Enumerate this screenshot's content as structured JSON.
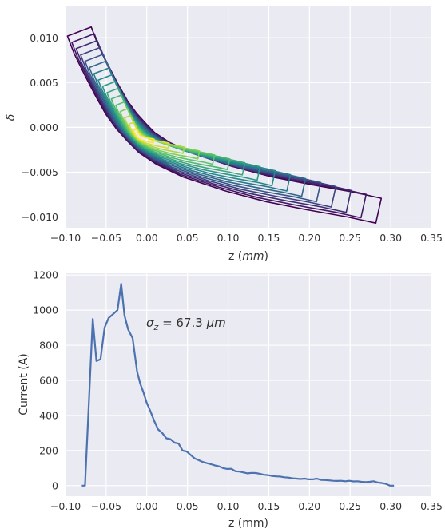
{
  "chart_data": [
    {
      "type": "contour",
      "title": "",
      "xlabel_base": "z (",
      "xlabel_unit": "mm",
      "xlabel_close": ")",
      "ylabel": "δ",
      "xlim": [
        -0.1,
        0.35
      ],
      "ylim": [
        -0.0112,
        0.0135
      ],
      "xticks": [
        "−0.10",
        "−0.05",
        "0.00",
        "0.05",
        "0.10",
        "0.15",
        "0.20",
        "0.25",
        "0.30",
        "0.35"
      ],
      "yticks": [
        "−0.010",
        "−0.005",
        "0.000",
        "0.005",
        "0.010"
      ],
      "ytick_values": [
        -0.01,
        -0.005,
        0.0,
        0.005,
        0.01
      ],
      "grid": true,
      "colormap": [
        "#440154",
        "#3b528b",
        "#21918c",
        "#5ec962",
        "#fde725"
      ],
      "ridge": [
        {
          "z": -0.083,
          "d": 0.0107
        },
        {
          "z": -0.075,
          "d": 0.0088
        },
        {
          "z": -0.062,
          "d": 0.0064
        },
        {
          "z": -0.05,
          "d": 0.0043
        },
        {
          "z": -0.037,
          "d": 0.0022
        },
        {
          "z": -0.025,
          "d": 0.0007
        },
        {
          "z": -0.012,
          "d": -0.0006
        },
        {
          "z": 0.0,
          "d": -0.0017
        },
        {
          "z": 0.02,
          "d": -0.0029
        },
        {
          "z": 0.05,
          "d": -0.0042
        },
        {
          "z": 0.1,
          "d": -0.0057
        },
        {
          "z": 0.15,
          "d": -0.0069
        },
        {
          "z": 0.2,
          "d": -0.0078
        },
        {
          "z": 0.25,
          "d": -0.0086
        },
        {
          "z": 0.285,
          "d": -0.0093
        }
      ],
      "peak": {
        "z": -0.01,
        "d": -0.001
      }
    },
    {
      "type": "line",
      "title": "",
      "xlabel": "z (mm)",
      "ylabel": "Current (A)",
      "xlim": [
        -0.1,
        0.35
      ],
      "ylim": [
        -60,
        1210
      ],
      "xticks": [
        "−0.10",
        "−0.05",
        "0.00",
        "0.05",
        "0.10",
        "0.15",
        "0.20",
        "0.25",
        "0.30",
        "0.35"
      ],
      "yticks": [
        "0",
        "200",
        "400",
        "600",
        "800",
        "1000",
        "1200"
      ],
      "ytick_values": [
        0,
        200,
        400,
        600,
        800,
        1000,
        1200
      ],
      "grid": true,
      "line_color": "#4c72b0",
      "annotation_prefix": "σ",
      "annotation_sub": "z",
      "annotation_value": " = 67.3 ",
      "annotation_unit": "μm",
      "series": [
        {
          "x": [
            -0.08,
            -0.076,
            -0.072,
            -0.0665,
            -0.062,
            -0.057,
            -0.052,
            -0.047,
            -0.042,
            -0.036,
            -0.0315,
            -0.0275,
            -0.023,
            -0.0175,
            -0.012,
            -0.008,
            -0.004,
            0.0,
            0.004,
            0.009,
            0.014,
            0.019,
            0.024,
            0.029,
            0.034,
            0.039,
            0.044,
            0.049,
            0.054,
            0.059,
            0.064,
            0.069,
            0.074,
            0.079,
            0.084,
            0.089,
            0.094,
            0.099,
            0.104,
            0.109,
            0.114,
            0.119,
            0.124,
            0.129,
            0.134,
            0.139,
            0.144,
            0.149,
            0.154,
            0.159,
            0.164,
            0.169,
            0.174,
            0.179,
            0.184,
            0.189,
            0.194,
            0.199,
            0.204,
            0.209,
            0.214,
            0.219,
            0.224,
            0.229,
            0.234,
            0.239,
            0.244,
            0.249,
            0.254,
            0.259,
            0.264,
            0.269,
            0.274,
            0.279,
            0.284,
            0.289,
            0.294,
            0.299,
            0.304
          ],
          "values": [
            0,
            0,
            400,
            950,
            710,
            720,
            900,
            955,
            975,
            1000,
            1150,
            970,
            890,
            840,
            650,
            580,
            530,
            470,
            430,
            370,
            320,
            300,
            270,
            265,
            245,
            240,
            200,
            195,
            175,
            155,
            145,
            135,
            128,
            122,
            115,
            110,
            100,
            95,
            96,
            82,
            80,
            75,
            70,
            73,
            72,
            68,
            62,
            60,
            55,
            53,
            52,
            48,
            46,
            42,
            40,
            38,
            40,
            36,
            36,
            40,
            33,
            32,
            30,
            28,
            27,
            28,
            25,
            28,
            24,
            25,
            22,
            20,
            22,
            25,
            18,
            15,
            10,
            0,
            0
          ]
        }
      ]
    }
  ]
}
